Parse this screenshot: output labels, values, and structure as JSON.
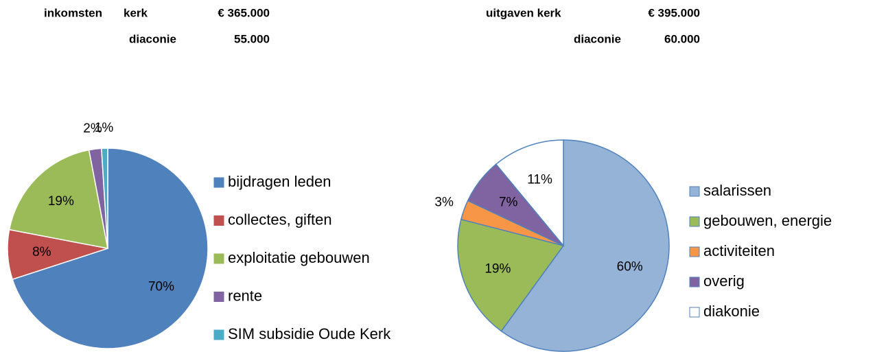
{
  "header": {
    "left": {
      "label": "inkomsten",
      "rows": [
        [
          "kerk",
          "€ 365.000"
        ],
        [
          "diaconie",
          "55.000"
        ]
      ]
    },
    "right": {
      "rows": [
        [
          "uitgaven kerk",
          "€ 395.000"
        ],
        [
          "diaconie",
          "60.000"
        ]
      ]
    }
  },
  "chart_data": [
    {
      "type": "pie",
      "categories": [
        "bijdragen leden",
        "collectes, giften",
        "exploitatie gebouwen",
        "rente",
        "SIM subsidie Oude Kerk"
      ],
      "values": [
        70,
        8,
        19,
        2,
        1
      ],
      "value_labels": [
        "70%",
        "8%",
        "19%",
        "2%",
        "1%"
      ],
      "colors": [
        "#4f81bd",
        "#c0504d",
        "#9bbb59",
        "#8064a2",
        "#4bacc6"
      ],
      "legend": "right"
    },
    {
      "type": "pie",
      "categories": [
        "salarissen",
        "gebouwen, energie",
        "activiteiten",
        "overig",
        "diakonie"
      ],
      "values": [
        60,
        19,
        3,
        7,
        11
      ],
      "value_labels": [
        "60%",
        "19%",
        "3%",
        "7%",
        "11%"
      ],
      "colors": [
        "#95b3d7",
        "#9bbb59",
        "#f79646",
        "#8064a2",
        "#ffffff"
      ],
      "legend": "right"
    }
  ]
}
